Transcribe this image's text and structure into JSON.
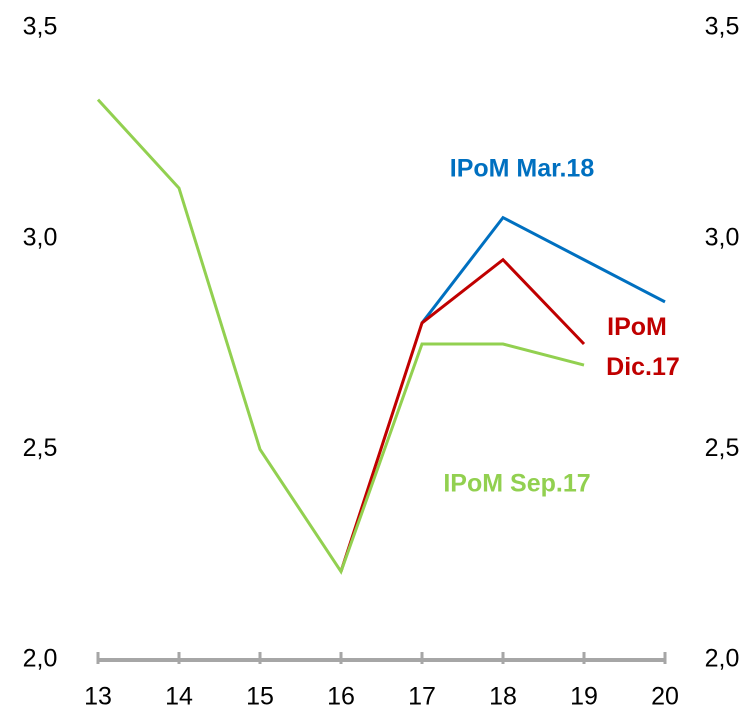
{
  "chart_data": {
    "type": "line",
    "categories": [
      "13",
      "14",
      "15",
      "16",
      "17",
      "18",
      "19",
      "20"
    ],
    "series": [
      {
        "name": "IPoM Mar.18",
        "color": "#0070c0",
        "values": [
          null,
          null,
          null,
          null,
          2.8,
          3.05,
          2.95,
          2.85
        ]
      },
      {
        "name": "IPoM Dic.17",
        "color": "#c00000",
        "values": [
          null,
          null,
          null,
          2.21,
          2.8,
          2.95,
          2.75,
          null
        ]
      },
      {
        "name": "IPoM Sep.17",
        "color": "#92d050",
        "values": [
          3.33,
          3.12,
          2.5,
          2.21,
          2.75,
          2.75,
          2.7,
          null
        ]
      }
    ],
    "ylim": [
      2.0,
      3.5
    ],
    "yticks": [
      {
        "value": 2.0,
        "label": "2,0"
      },
      {
        "value": 2.5,
        "label": "2,5"
      },
      {
        "value": 3.0,
        "label": "3,0"
      },
      {
        "value": 3.5,
        "label": "3,5"
      }
    ],
    "y2lim": [
      2.0,
      3.5
    ],
    "y2ticks": [
      {
        "value": 2.0,
        "label": "2,0"
      },
      {
        "value": 2.5,
        "label": "2,5"
      },
      {
        "value": 3.0,
        "label": "3,0"
      },
      {
        "value": 3.5,
        "label": "3,5"
      }
    ],
    "axis_color": "#a6a6a6"
  }
}
